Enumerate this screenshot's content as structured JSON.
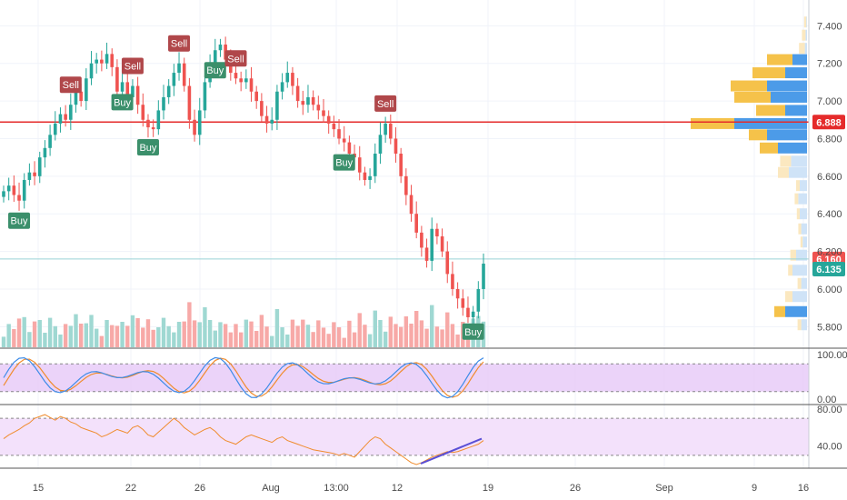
{
  "chart_data": [
    {
      "type": "candlestick",
      "ylim": [
        5.7,
        7.45
      ],
      "y_ticks": [
        "7.400",
        "7.200",
        "7.000",
        "6.800",
        "6.600",
        "6.400",
        "6.200",
        "6.000",
        "5.800"
      ],
      "x_ticks": [
        "15",
        "22",
        "26",
        "Aug",
        "13:00",
        "12",
        "19",
        "26",
        "Sep",
        "9",
        "16"
      ],
      "horizontal_lines": [
        {
          "value": 6.888,
          "label": "6.888",
          "color": "#e52b2b",
          "style": "solid"
        },
        {
          "value": 6.16,
          "label": "6.160",
          "color": "#ef5350",
          "style": "thin"
        }
      ],
      "last_price": {
        "value": 6.135,
        "label": "6.135",
        "color": "#26a69a"
      },
      "candles_close": [
        6.52,
        6.55,
        6.5,
        6.47,
        6.58,
        6.62,
        6.6,
        6.7,
        6.75,
        6.82,
        6.88,
        6.93,
        6.9,
        6.98,
        7.05,
        7.0,
        7.12,
        7.2,
        7.22,
        7.2,
        7.25,
        7.18,
        7.05,
        7.1,
        7.02,
        7.08,
        6.98,
        6.9,
        6.86,
        6.85,
        6.95,
        7.02,
        7.08,
        7.15,
        7.2,
        7.08,
        6.9,
        6.82,
        6.95,
        7.1,
        7.2,
        7.27,
        7.3,
        7.22,
        7.15,
        7.12,
        7.1,
        7.12,
        7.05,
        7.0,
        6.92,
        6.88,
        6.9,
        7.05,
        7.1,
        7.15,
        7.08,
        7.0,
        6.98,
        7.02,
        6.98,
        6.95,
        6.92,
        6.88,
        6.85,
        6.8,
        6.78,
        6.72,
        6.7,
        6.62,
        6.58,
        6.6,
        6.72,
        6.82,
        6.88,
        6.8,
        6.72,
        6.6,
        6.5,
        6.4,
        6.3,
        6.22,
        6.15,
        6.32,
        6.28,
        6.2,
        6.08,
        6.0,
        5.95,
        5.9,
        5.85,
        5.88,
        6.0,
        6.135
      ],
      "buy_signals": [
        3,
        23,
        28,
        41,
        66,
        91
      ],
      "sell_signals": [
        13,
        25,
        34,
        45,
        74
      ],
      "volume_profile": [
        {
          "price": 7.42,
          "up": 0.03,
          "down": 0.01
        },
        {
          "price": 7.35,
          "up": 0.05,
          "down": 0.02
        },
        {
          "price": 7.28,
          "up": 0.08,
          "down": 0.03
        },
        {
          "price": 7.22,
          "up": 0.35,
          "down": 0.2
        },
        {
          "price": 7.15,
          "up": 0.45,
          "down": 0.3
        },
        {
          "price": 7.08,
          "up": 0.5,
          "down": 0.55
        },
        {
          "price": 7.02,
          "up": 0.5,
          "down": 0.5
        },
        {
          "price": 6.95,
          "up": 0.4,
          "down": 0.3
        },
        {
          "price": 6.88,
          "up": 0.6,
          "down": 1.0
        },
        {
          "price": 6.82,
          "up": 0.25,
          "down": 0.55
        },
        {
          "price": 6.75,
          "up": 0.25,
          "down": 0.4
        },
        {
          "price": 6.68,
          "up": 0.15,
          "down": 0.22
        },
        {
          "price": 6.62,
          "up": 0.15,
          "down": 0.25
        },
        {
          "price": 6.55,
          "up": 0.05,
          "down": 0.1
        },
        {
          "price": 6.48,
          "up": 0.05,
          "down": 0.12
        },
        {
          "price": 6.4,
          "up": 0.04,
          "down": 0.1
        },
        {
          "price": 6.32,
          "up": 0.04,
          "down": 0.08
        },
        {
          "price": 6.25,
          "up": 0.03,
          "down": 0.06
        },
        {
          "price": 6.18,
          "up": 0.08,
          "down": 0.15
        },
        {
          "price": 6.1,
          "up": 0.06,
          "down": 0.2
        },
        {
          "price": 6.03,
          "up": 0.05,
          "down": 0.08
        },
        {
          "price": 5.96,
          "up": 0.1,
          "down": 0.2
        },
        {
          "price": 5.88,
          "up": 0.15,
          "down": 0.3
        },
        {
          "price": 5.81,
          "up": 0.05,
          "down": 0.08
        }
      ]
    },
    {
      "type": "line",
      "name": "stochastic",
      "ylim": [
        0,
        100
      ],
      "y_ticks": [
        "100.00",
        "0.00"
      ],
      "band": [
        20,
        80
      ]
    },
    {
      "type": "line",
      "name": "rsi",
      "ylim": [
        20,
        80
      ],
      "y_ticks": [
        "80.00",
        "40.00"
      ],
      "band": [
        30,
        70
      ],
      "values": [
        48,
        52,
        55,
        58,
        62,
        65,
        70,
        72,
        74,
        71,
        68,
        72,
        70,
        66,
        64,
        60,
        58,
        56,
        54,
        50,
        52,
        55,
        58,
        56,
        54,
        60,
        62,
        58,
        52,
        50,
        55,
        60,
        65,
        70,
        66,
        60,
        56,
        52,
        55,
        58,
        60,
        56,
        50,
        46,
        44,
        42,
        46,
        50,
        52,
        50,
        48,
        46,
        44,
        48,
        50,
        46,
        44,
        42,
        40,
        38,
        36,
        35,
        34,
        33,
        32,
        30,
        32,
        30,
        28,
        34,
        40,
        46,
        50,
        48,
        42,
        38,
        34,
        30,
        26,
        22,
        20,
        22,
        25,
        28,
        30,
        32,
        34,
        33,
        34,
        36,
        38,
        40,
        42,
        46
      ]
    }
  ],
  "labels": {
    "buy": "Buy",
    "sell": "Sell"
  },
  "colors": {
    "up": "#26a69a",
    "down": "#ef5350",
    "profile_up": "#f5c24a",
    "profile_down": "#4c9be8",
    "band": "#e6c8f7",
    "rsi": "#f08c2e",
    "stoch_k": "#3d8be8",
    "stoch_d": "#f08c2e"
  }
}
